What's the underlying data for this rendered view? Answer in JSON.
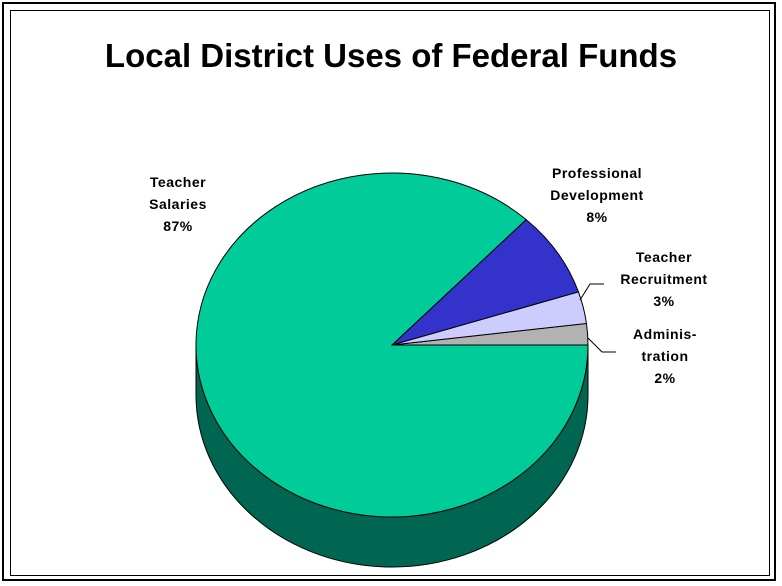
{
  "chart_data": {
    "type": "pie",
    "title": "Local District Uses of Federal Funds",
    "slices": [
      {
        "name": "Teacher Salaries",
        "label_lines": [
          "Teacher",
          "Salaries"
        ],
        "percent_label": "87%",
        "value": 87,
        "color": "#00cc99",
        "side_color": "#006651"
      },
      {
        "name": "Professional Development",
        "label_lines": [
          "Professional",
          "Development"
        ],
        "percent_label": "8%",
        "value": 8,
        "color": "#3333cc",
        "side_color": "#1a1a66"
      },
      {
        "name": "Teacher Recruitment",
        "label_lines": [
          "Teacher",
          "Recruitment"
        ],
        "percent_label": "3%",
        "value": 3,
        "color": "#ccccff",
        "side_color": "#666680"
      },
      {
        "name": "Administration",
        "label_lines": [
          "Adminis-",
          "tration"
        ],
        "percent_label": "2%",
        "value": 2,
        "color": "#b2b2b2",
        "side_color": "#595959"
      }
    ],
    "three_d": true
  }
}
